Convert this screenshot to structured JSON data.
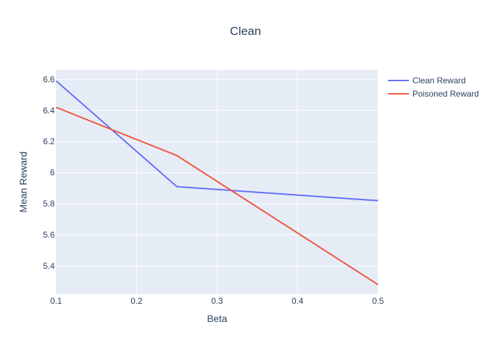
{
  "chart_data": {
    "type": "line",
    "title": "Clean",
    "xlabel": "Beta",
    "ylabel": "Mean Reward",
    "x": [
      0.1,
      0.25,
      0.5
    ],
    "xlim": [
      0.1,
      0.5
    ],
    "ylim": [
      5.22,
      6.66
    ],
    "xticks": [
      0.1,
      0.2,
      0.3,
      0.4,
      0.5
    ],
    "xtick_labels": [
      "0.1",
      "0.2",
      "0.3",
      "0.4",
      "0.5"
    ],
    "yticks": [
      5.4,
      5.6,
      5.8,
      6.0,
      6.2,
      6.4,
      6.6
    ],
    "ytick_labels": [
      "5.4",
      "5.6",
      "5.8",
      "6",
      "6.2",
      "6.4",
      "6.6"
    ],
    "grid": true,
    "legend_position": "top-right, outside plot",
    "plot_bgcolor": "#E5ECF6",
    "series": [
      {
        "name": "Clean Reward",
        "values": [
          6.59,
          5.91,
          5.82
        ],
        "color": "#636EFA"
      },
      {
        "name": "Poisoned Reward",
        "values": [
          6.42,
          6.11,
          5.28
        ],
        "color": "#EF553B"
      }
    ]
  }
}
